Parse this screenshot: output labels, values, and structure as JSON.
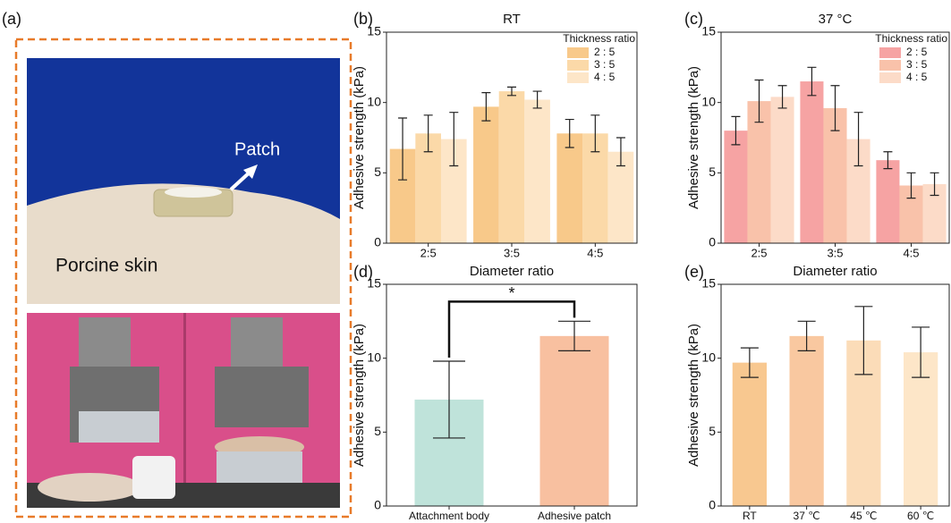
{
  "panel_a": {
    "label": "(a)",
    "patch_label": "Patch",
    "skin_label": "Porcine skin"
  },
  "chart_data": [
    {
      "type": "bar",
      "panel": "(b)",
      "title": "RT",
      "xlabel": "Diameter ratio",
      "ylabel": "Adhesive strength (kPa)",
      "categories": [
        "2:5",
        "3:5",
        "4:5"
      ],
      "legend_title": "Thickness ratio",
      "series": [
        {
          "name": "2 : 5",
          "color": "#f8c98a",
          "values": [
            6.7,
            9.7,
            7.8
          ],
          "errors": [
            2.2,
            1.0,
            1.0
          ]
        },
        {
          "name": "3 : 5",
          "color": "#fbd9a8",
          "values": [
            7.8,
            10.8,
            7.8
          ],
          "errors": [
            1.3,
            0.3,
            1.3
          ]
        },
        {
          "name": "4 : 5",
          "color": "#fde6c8",
          "values": [
            7.4,
            10.2,
            6.5
          ],
          "errors": [
            1.9,
            0.6,
            1.0
          ]
        }
      ],
      "ylim": [
        0,
        15
      ],
      "yticks": [
        0,
        5,
        10,
        15
      ]
    },
    {
      "type": "bar",
      "panel": "(c)",
      "title": "37 °C",
      "xlabel": "Diameter ratio",
      "ylabel": "Adhesive strength (kPa)",
      "categories": [
        "2:5",
        "3:5",
        "4:5"
      ],
      "legend_title": "Thickness ratio",
      "series": [
        {
          "name": "2 : 5",
          "color": "#f6a3a3",
          "values": [
            8.0,
            11.5,
            5.9
          ],
          "errors": [
            1.0,
            1.0,
            0.6
          ]
        },
        {
          "name": "3 : 5",
          "color": "#f9c2aa",
          "values": [
            10.1,
            9.6,
            4.1
          ],
          "errors": [
            1.5,
            1.6,
            0.9
          ]
        },
        {
          "name": "4 : 5",
          "color": "#fcdbc8",
          "values": [
            10.4,
            7.4,
            4.2
          ],
          "errors": [
            0.8,
            1.9,
            0.8
          ]
        }
      ],
      "ylim": [
        0,
        15
      ],
      "yticks": [
        0,
        5,
        10,
        15
      ]
    },
    {
      "type": "bar",
      "panel": "(d)",
      "ylabel": "Adhesive strength (kPa)",
      "categories": [
        "Attachment body",
        "Adhesive patch"
      ],
      "values": [
        7.2,
        11.5
      ],
      "errors": [
        2.6,
        1.0
      ],
      "colors": [
        "#bfe3da",
        "#f8c0a0"
      ],
      "annotation": "*",
      "ylim": [
        0,
        15
      ],
      "yticks": [
        0,
        5,
        10,
        15
      ]
    },
    {
      "type": "bar",
      "panel": "(e)",
      "ylabel": "Adhesive strength (kPa)",
      "categories": [
        "RT",
        "37 ℃",
        "45 ℃",
        "60 ℃"
      ],
      "values": [
        9.7,
        11.5,
        11.2,
        10.4
      ],
      "errors": [
        1.0,
        1.0,
        2.3,
        1.7
      ],
      "colors": [
        "#f8c890",
        "#f9c8a0",
        "#fbdcb8",
        "#fde6c8"
      ],
      "ylim": [
        0,
        15
      ],
      "yticks": [
        0,
        5,
        10,
        15
      ]
    }
  ]
}
